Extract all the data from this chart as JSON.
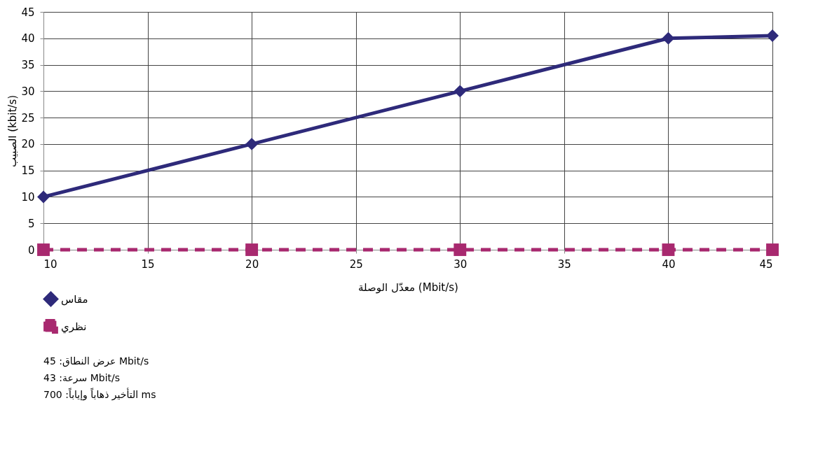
{
  "chart_data": {
    "type": "line",
    "xlabel": "معدّل الوصلة (Mbit/s)",
    "ylabel": "الصبيب (kbit/s)",
    "xlim": [
      10,
      45
    ],
    "xticks": [
      10,
      15,
      20,
      25,
      30,
      35,
      40,
      45
    ],
    "ylim": [
      0,
      45
    ],
    "yticks": [
      0,
      5,
      10,
      15,
      20,
      25,
      30,
      35,
      40,
      45
    ],
    "grid": true,
    "legend": "bottom",
    "series": [
      {
        "name": "مقاس",
        "color": "#2e2a7a",
        "marker": "diamond",
        "line_style": "solid",
        "x": [
          10,
          20,
          30,
          40,
          45
        ],
        "values": [
          10,
          20,
          30,
          40,
          40.5
        ]
      },
      {
        "name": "نظري",
        "color": "#a8296f",
        "marker": "square",
        "line_style": "dashed",
        "x": [
          10,
          20,
          30,
          40,
          45
        ],
        "values": [
          0,
          0,
          0,
          0,
          0
        ]
      }
    ],
    "annotations": [
      "عرض النطاق: 45 Mbit/s",
      "سرعة: 43 Mbit/s",
      "التأخير ذهاباً وإياباً: 700 ms"
    ]
  }
}
